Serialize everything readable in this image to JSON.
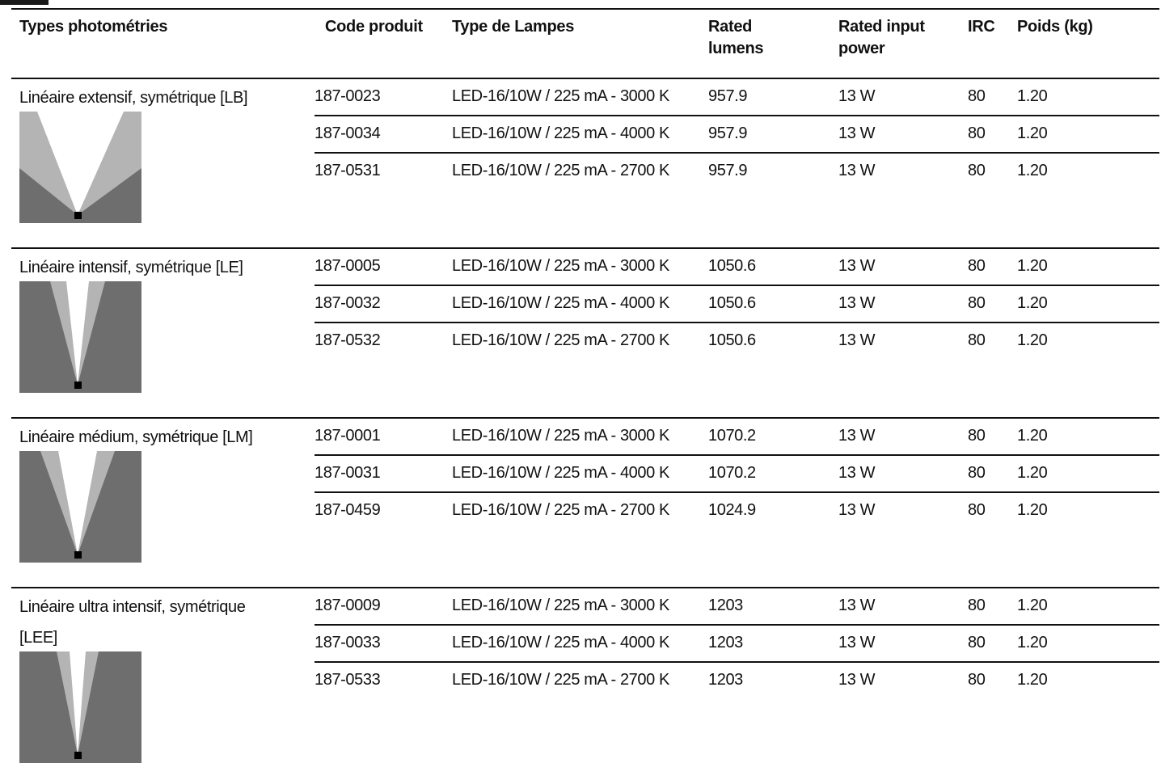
{
  "columns": {
    "photometry": "Types photométries",
    "code": "Code produit",
    "lamp_type": "Type de Lampes",
    "lumens": [
      "Rated",
      "lumens"
    ],
    "power": [
      "Rated input",
      "power"
    ],
    "irc": "IRC",
    "weight": "Poids (kg)"
  },
  "groups": [
    {
      "name": [
        "Linéaire extensif, symétrique [LB]"
      ],
      "beam": "extensif",
      "rows": [
        {
          "code": "187-0023",
          "lamp": "LED-16/10W / 225 mA - 3000 K",
          "lumens": "957.9",
          "power": "13 W",
          "irc": "80",
          "weight": "1.20"
        },
        {
          "code": "187-0034",
          "lamp": "LED-16/10W / 225 mA - 4000 K",
          "lumens": "957.9",
          "power": "13 W",
          "irc": "80",
          "weight": "1.20"
        },
        {
          "code": "187-0531",
          "lamp": "LED-16/10W / 225 mA - 2700 K",
          "lumens": "957.9",
          "power": "13 W",
          "irc": "80",
          "weight": "1.20"
        }
      ]
    },
    {
      "name": [
        "Linéaire intensif, symétrique [LE]"
      ],
      "beam": "intensif",
      "rows": [
        {
          "code": "187-0005",
          "lamp": "LED-16/10W / 225 mA - 3000 K",
          "lumens": "1050.6",
          "power": "13 W",
          "irc": "80",
          "weight": "1.20"
        },
        {
          "code": "187-0032",
          "lamp": "LED-16/10W / 225 mA - 4000 K",
          "lumens": "1050.6",
          "power": "13 W",
          "irc": "80",
          "weight": "1.20"
        },
        {
          "code": "187-0532",
          "lamp": "LED-16/10W / 225 mA - 2700 K",
          "lumens": "1050.6",
          "power": "13 W",
          "irc": "80",
          "weight": "1.20"
        }
      ]
    },
    {
      "name": [
        "Linéaire médium, symétrique [LM]"
      ],
      "beam": "medium",
      "rows": [
        {
          "code": "187-0001",
          "lamp": "LED-16/10W / 225 mA - 3000 K",
          "lumens": "1070.2",
          "power": "13 W",
          "irc": "80",
          "weight": "1.20"
        },
        {
          "code": "187-0031",
          "lamp": "LED-16/10W / 225 mA - 4000 K",
          "lumens": "1070.2",
          "power": "13 W",
          "irc": "80",
          "weight": "1.20"
        },
        {
          "code": "187-0459",
          "lamp": "LED-16/10W / 225 mA - 2700 K",
          "lumens": "1024.9",
          "power": "13 W",
          "irc": "80",
          "weight": "1.20"
        }
      ]
    },
    {
      "name": [
        "Linéaire ultra intensif, symétrique",
        "[LEE]"
      ],
      "beam": "ultra-intensif",
      "rows": [
        {
          "code": "187-0009",
          "lamp": "LED-16/10W / 225 mA - 3000 K",
          "lumens": "1203",
          "power": "13 W",
          "irc": "80",
          "weight": "1.20"
        },
        {
          "code": "187-0033",
          "lamp": "LED-16/10W / 225 mA - 4000 K",
          "lumens": "1203",
          "power": "13 W",
          "irc": "80",
          "weight": "1.20"
        },
        {
          "code": "187-0533",
          "lamp": "LED-16/10W / 225 mA - 2700 K",
          "lumens": "1203",
          "power": "13 W",
          "irc": "80",
          "weight": "1.20"
        }
      ]
    }
  ],
  "colors": {
    "rule": "#111111",
    "thumb_background": "#6e6e6e",
    "beam_outer": "#b4b4b4",
    "beam_inner": "#ffffff",
    "fixture": "#000000"
  }
}
